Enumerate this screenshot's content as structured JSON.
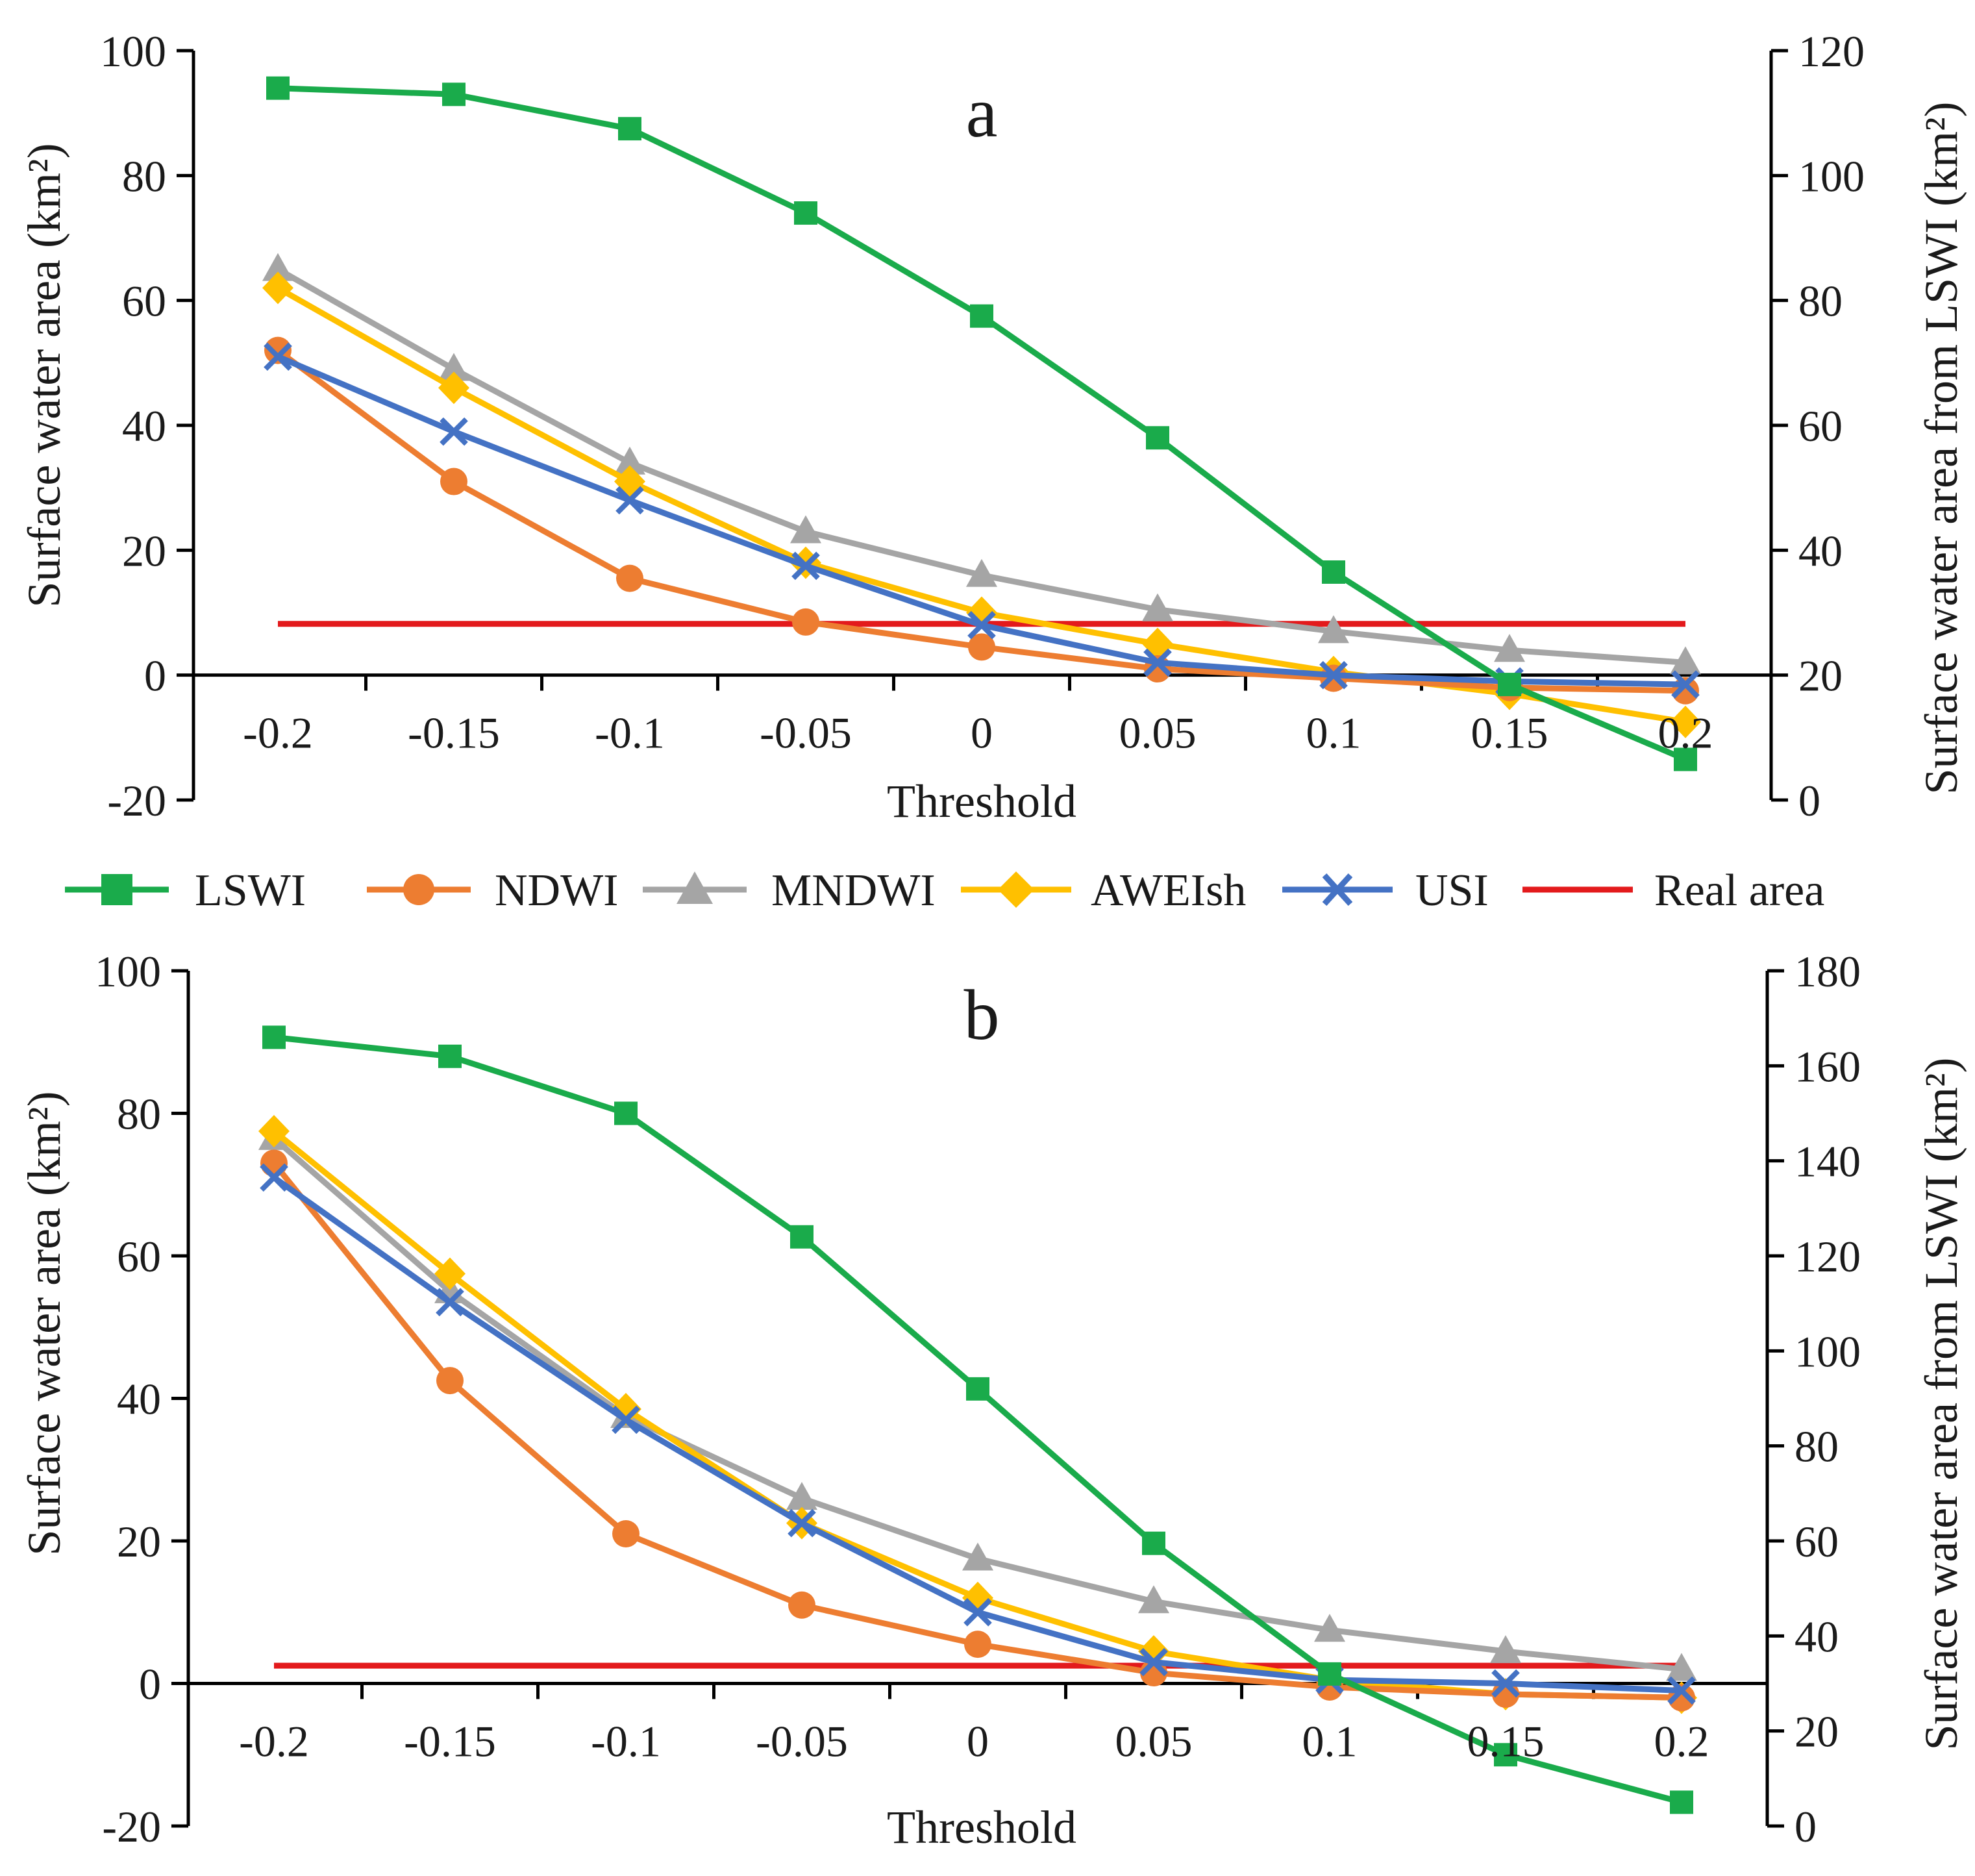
{
  "legend": [
    {
      "name": "LSWI",
      "color": "#1aab4b",
      "marker": "square"
    },
    {
      "name": "NDWI",
      "color": "#ed7d31",
      "marker": "circle"
    },
    {
      "name": "MNDWI",
      "color": "#a5a5a5",
      "marker": "triangle"
    },
    {
      "name": "AWEIsh",
      "color": "#ffc000",
      "marker": "diamond"
    },
    {
      "name": "USI",
      "color": "#4472c4",
      "marker": "x"
    },
    {
      "name": "Real area",
      "color": "#e31a1c",
      "marker": "none"
    }
  ],
  "chart_data": [
    {
      "type": "line",
      "panel": "a",
      "xlabel": "Threshold",
      "ylabel": "Surface water area (km²)",
      "y2label": "Surface water area from LSWI (km²)",
      "categories": [
        "-0.2",
        "-0.15",
        "-0.1",
        "-0.05",
        "0",
        "0.05",
        "0.1",
        "0.15",
        "0.2"
      ],
      "ylim": [
        -20,
        100
      ],
      "yticks": [
        "-20",
        "0",
        "20",
        "40",
        "60",
        "80",
        "100"
      ],
      "y2lim": [
        0,
        120
      ],
      "y2ticks": [
        "0",
        "20",
        "40",
        "60",
        "80",
        "100",
        "120"
      ],
      "series": [
        {
          "name": "LSWI",
          "axis": "right",
          "values": [
            114,
            113,
            107.5,
            94,
            77.5,
            58,
            36.5,
            18.5,
            6.5
          ]
        },
        {
          "name": "NDWI",
          "axis": "left",
          "values": [
            52,
            31,
            15.5,
            8.5,
            4.5,
            1,
            -0.5,
            -2,
            -2.5
          ]
        },
        {
          "name": "MNDWI",
          "axis": "left",
          "values": [
            65,
            49,
            34,
            23,
            16,
            10.5,
            7,
            4,
            2
          ]
        },
        {
          "name": "AWEIsh",
          "axis": "left",
          "values": [
            62,
            46,
            31,
            18,
            10,
            5,
            0.5,
            -3,
            -7.5
          ]
        },
        {
          "name": "USI",
          "axis": "left",
          "values": [
            51,
            39,
            28,
            17.5,
            8,
            2,
            0,
            -1,
            -1.5
          ]
        },
        {
          "name": "Real area",
          "axis": "left",
          "values": [
            8.2,
            8.2,
            8.2,
            8.2,
            8.2,
            8.2,
            8.2,
            8.2,
            8.2
          ]
        }
      ]
    },
    {
      "type": "line",
      "panel": "b",
      "xlabel": "Threshold",
      "ylabel": "Surface water area (km²)",
      "y2label": "Surface water area from LSWI (km²)",
      "categories": [
        "-0.2",
        "-0.15",
        "-0.1",
        "-0.05",
        "0",
        "0.05",
        "0.1",
        "0.15",
        "0.2"
      ],
      "ylim": [
        -20,
        100
      ],
      "yticks": [
        "-20",
        "0",
        "20",
        "40",
        "60",
        "80",
        "100"
      ],
      "y2lim": [
        0,
        180
      ],
      "y2ticks": [
        "0",
        "20",
        "40",
        "60",
        "80",
        "100",
        "120",
        "140",
        "160",
        "180"
      ],
      "series": [
        {
          "name": "LSWI",
          "axis": "right",
          "values": [
            166,
            162,
            150,
            124,
            92,
            59.5,
            32,
            15,
            5
          ]
        },
        {
          "name": "NDWI",
          "axis": "left",
          "values": [
            73,
            42.5,
            21,
            11,
            5.5,
            1.5,
            -0.5,
            -1.5,
            -2
          ]
        },
        {
          "name": "MNDWI",
          "axis": "left",
          "values": [
            76.5,
            55,
            37.5,
            26,
            17.5,
            11.5,
            7.5,
            4.5,
            2
          ]
        },
        {
          "name": "AWEIsh",
          "axis": "left",
          "values": [
            77.5,
            57.5,
            38.5,
            22.5,
            12,
            4.5,
            0.5,
            -1.5,
            -2
          ]
        },
        {
          "name": "USI",
          "axis": "left",
          "values": [
            71,
            53.5,
            37,
            22.5,
            10,
            3,
            0.5,
            0,
            -1
          ]
        },
        {
          "name": "Real area",
          "axis": "left",
          "values": [
            2.5,
            2.5,
            2.5,
            2.5,
            2.5,
            2.5,
            2.5,
            2.5,
            2.5
          ]
        }
      ]
    }
  ]
}
